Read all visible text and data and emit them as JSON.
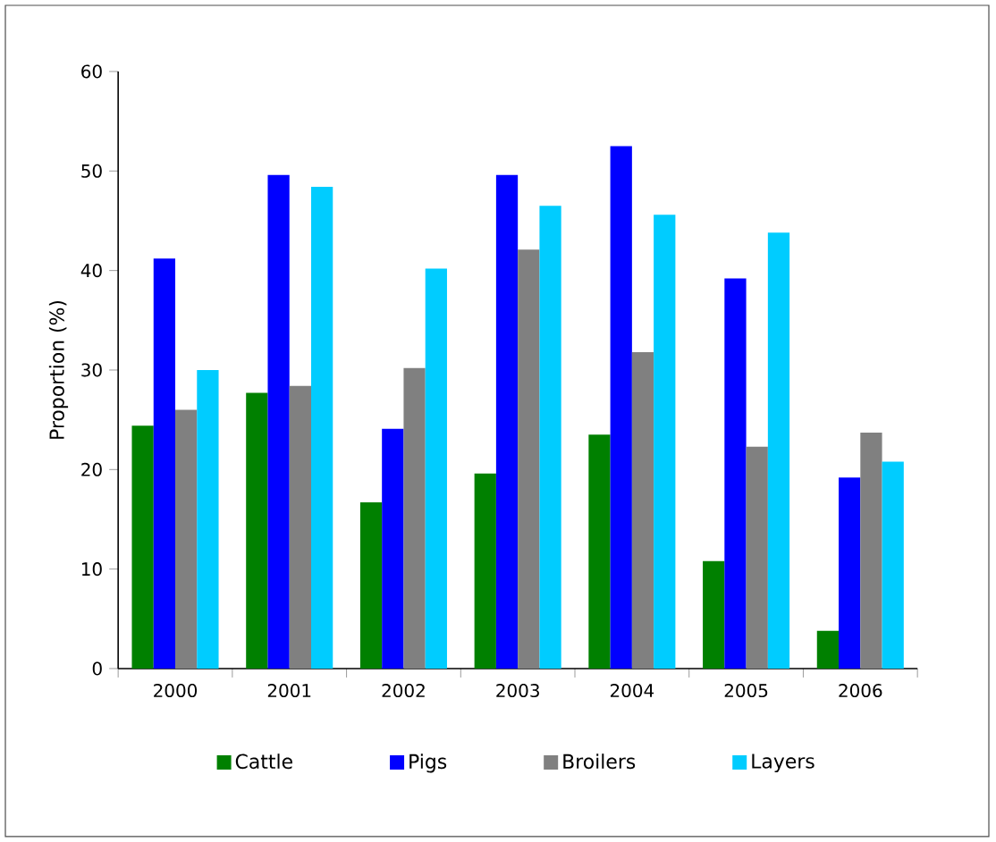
{
  "chart_data": {
    "type": "bar",
    "ylabel": "Proportion (%)",
    "categories": [
      "2000",
      "2001",
      "2002",
      "2003",
      "2004",
      "2005",
      "2006"
    ],
    "series": [
      {
        "name": "Cattle",
        "color": "#008000",
        "values": [
          24.4,
          27.7,
          16.7,
          19.6,
          23.5,
          10.8,
          3.8
        ]
      },
      {
        "name": "Pigs",
        "color": "#0000ff",
        "values": [
          41.2,
          49.6,
          24.1,
          49.6,
          52.5,
          39.2,
          19.2
        ]
      },
      {
        "name": "Broilers",
        "color": "#808080",
        "values": [
          26.0,
          28.4,
          30.2,
          42.1,
          31.8,
          22.3,
          23.7
        ]
      },
      {
        "name": "Layers",
        "color": "#00ccff",
        "values": [
          30.0,
          48.4,
          40.2,
          46.5,
          45.6,
          43.8,
          20.8
        ]
      }
    ],
    "ylim": [
      0,
      60
    ],
    "yticks": [
      0,
      10,
      20,
      30,
      40,
      50,
      60
    ],
    "grid": false,
    "legend": "bottom"
  }
}
